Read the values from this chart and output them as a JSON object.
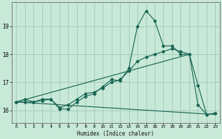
{
  "xlabel": "Humidex (Indice chaleur)",
  "ylabel": "",
  "bg_color": "#c8e8d8",
  "grid_color": "#a0c8b8",
  "line_color": "#1a6655",
  "marker_color": "#1a6655",
  "xlim": [
    -0.5,
    23.5
  ],
  "ylim": [
    15.55,
    19.85
  ],
  "yticks": [
    16,
    17,
    18,
    19
  ],
  "xticks": [
    0,
    1,
    2,
    3,
    4,
    5,
    6,
    7,
    8,
    9,
    10,
    11,
    12,
    13,
    14,
    15,
    16,
    17,
    18,
    19,
    20,
    21,
    22,
    23
  ],
  "line1_x": [
    0,
    1,
    2,
    3,
    4,
    5,
    6,
    7,
    8,
    9,
    10,
    11,
    12,
    13,
    14,
    15,
    16,
    17,
    18,
    19,
    20,
    21,
    22,
    23
  ],
  "line1_y": [
    16.3,
    16.4,
    16.3,
    16.4,
    16.4,
    16.05,
    16.05,
    16.3,
    16.5,
    16.6,
    16.85,
    17.1,
    17.05,
    17.5,
    19.0,
    19.55,
    19.2,
    18.3,
    18.3,
    18.0,
    18.0,
    16.9,
    15.85,
    15.9
  ],
  "line2_x": [
    0,
    1,
    2,
    3,
    4,
    5,
    6,
    7,
    8,
    9,
    10,
    11,
    12,
    13,
    14,
    15,
    16,
    17,
    18,
    19,
    20,
    21,
    22,
    23
  ],
  "line2_y": [
    16.3,
    16.3,
    16.3,
    16.35,
    16.4,
    16.1,
    16.2,
    16.4,
    16.6,
    16.65,
    16.8,
    17.0,
    17.1,
    17.4,
    17.75,
    17.9,
    18.0,
    18.1,
    18.2,
    18.1,
    18.0,
    16.2,
    15.85,
    15.9
  ],
  "line3_x": [
    0,
    23
  ],
  "line3_y": [
    16.3,
    15.85
  ],
  "line4_x": [
    0,
    20
  ],
  "line4_y": [
    16.3,
    18.0
  ]
}
